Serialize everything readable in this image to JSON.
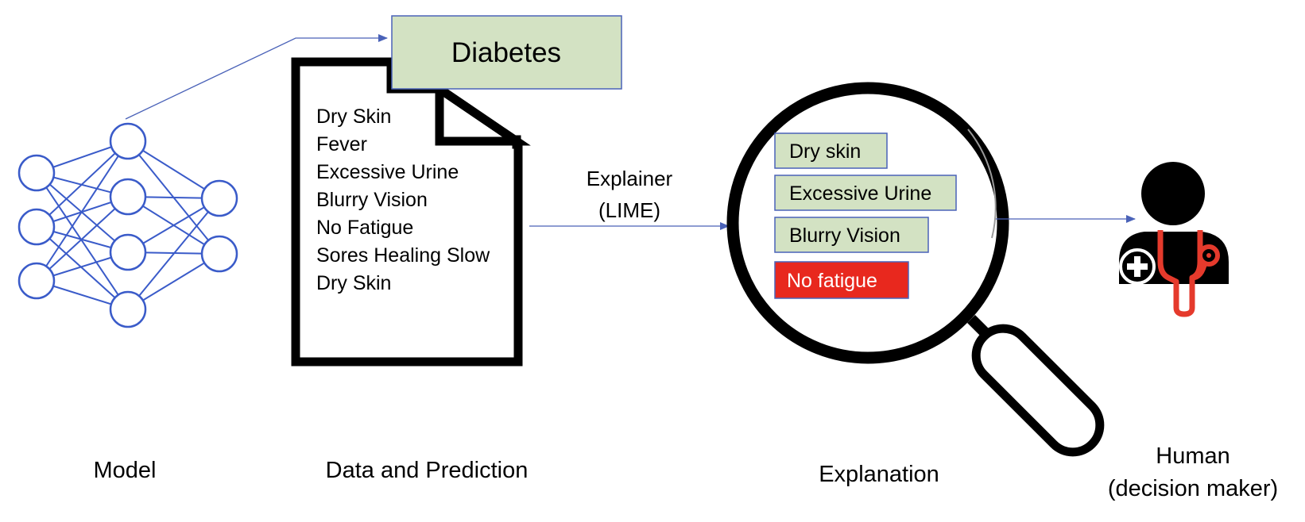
{
  "prediction": {
    "label": "Diabetes",
    "color": "#d3e2c3"
  },
  "document": {
    "lines": [
      "Dry Skin",
      "Fever",
      "Excessive Urine",
      "Blurry Vision",
      "No Fatigue",
      "Sores Healing Slow",
      "Dry Skin"
    ]
  },
  "explainer": {
    "line1": "Explainer",
    "line2": "(LIME)"
  },
  "explanation": {
    "features": [
      {
        "label": "Dry skin",
        "color": "#d3e2c3",
        "text_color": "#000000"
      },
      {
        "label": "Excessive Urine",
        "color": "#d3e2c3",
        "text_color": "#000000"
      },
      {
        "label": "Blurry Vision",
        "color": "#d3e2c3",
        "text_color": "#000000"
      },
      {
        "label": "No fatigue",
        "color": "#e8281e",
        "text_color": "#ffffff"
      }
    ]
  },
  "captions": {
    "model": "Model",
    "data": "Data and Prediction",
    "explanation": "Explanation",
    "human_line1": "Human",
    "human_line2": "(decision maker)"
  },
  "colors": {
    "network": "#3a5bc9",
    "arrow": "#4a62b8",
    "stethoscope": "#e53a2c"
  },
  "icons": [
    "neural-network-icon",
    "document-icon",
    "magnifying-glass-icon",
    "doctor-icon",
    "medical-cross-icon",
    "stethoscope-icon"
  ]
}
